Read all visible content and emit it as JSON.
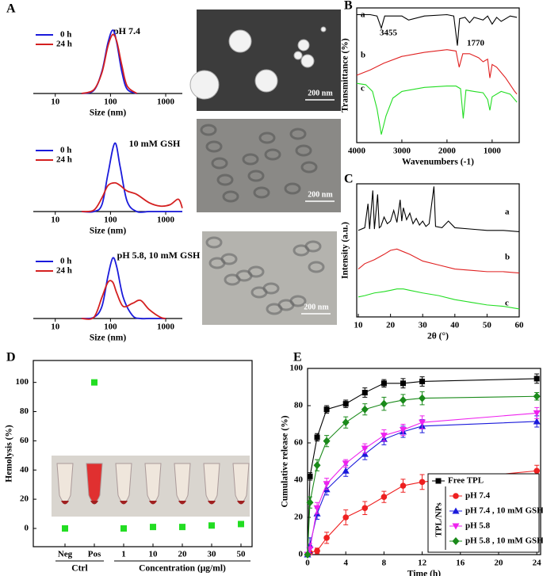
{
  "chart_data": [
    {
      "type": "line",
      "panel": "A",
      "title": "pH 7.4",
      "xlabel": "Size (nm)",
      "xscale": "log",
      "xlim": [
        4,
        2000
      ],
      "xticks": [
        10,
        100,
        1000
      ],
      "ylim": [
        0,
        1.1
      ],
      "x": [
        30,
        50,
        70,
        90,
        110,
        130,
        160,
        200,
        300
      ],
      "series": [
        {
          "name": "0 h",
          "color": "#1a1adb",
          "values": [
            0,
            0.05,
            0.35,
            0.8,
            1.0,
            0.8,
            0.35,
            0.07,
            0
          ]
        },
        {
          "name": "24 h",
          "color": "#d42020",
          "values": [
            0,
            0.06,
            0.33,
            0.75,
            0.93,
            0.82,
            0.45,
            0.12,
            0
          ]
        }
      ],
      "image_scale": "200 nm"
    },
    {
      "type": "line",
      "title": "10 mM GSH",
      "xlabel": "Size (nm)",
      "xscale": "log",
      "xlim": [
        4,
        2000
      ],
      "xticks": [
        10,
        100,
        1000
      ],
      "ylim": [
        0,
        1.1
      ],
      "x": [
        30,
        50,
        70,
        90,
        120,
        150,
        200,
        300,
        500,
        800,
        1200,
        1700,
        2000
      ],
      "series": [
        {
          "name": "0 h",
          "color": "#1a1adb",
          "values": [
            0,
            0,
            0.1,
            0.55,
            1.0,
            0.65,
            0.15,
            0,
            0,
            0,
            0,
            0,
            0
          ]
        },
        {
          "name": "24 h",
          "color": "#d42020",
          "values": [
            0,
            0.02,
            0.2,
            0.38,
            0.42,
            0.38,
            0.3,
            0.25,
            0.13,
            0.08,
            0.1,
            0.18,
            0.05
          ]
        }
      ],
      "image_scale": "200 nm"
    },
    {
      "type": "line",
      "title": "pH 5.8, 10 mM GSH",
      "xlabel": "Size (nm)",
      "xscale": "log",
      "xlim": [
        4,
        2000
      ],
      "xticks": [
        10,
        100,
        1000
      ],
      "ylim": [
        0,
        1.1
      ],
      "x": [
        30,
        50,
        70,
        90,
        110,
        130,
        170,
        250,
        350,
        500,
        800,
        1000
      ],
      "series": [
        {
          "name": "0 h",
          "color": "#1a1adb",
          "values": [
            0,
            0.02,
            0.2,
            0.7,
            1.0,
            0.85,
            0.35,
            0.05,
            0,
            0,
            0,
            0
          ]
        },
        {
          "name": "24 h",
          "color": "#d42020",
          "values": [
            0,
            0.02,
            0.35,
            0.6,
            0.6,
            0.42,
            0.2,
            0.25,
            0.3,
            0.15,
            0.02,
            0
          ]
        }
      ],
      "image_scale": "200 nm"
    },
    {
      "type": "line",
      "panel": "B",
      "xlabel": "Wavenumbers (-1)",
      "ylabel": "Transmittance (%)",
      "xlim": [
        4000,
        400
      ],
      "xticks": [
        4000,
        3000,
        2000,
        1000
      ],
      "ylim": [
        0,
        100
      ],
      "annotations": [
        "3455",
        "1770"
      ],
      "series": [
        {
          "name": "a",
          "color": "#000000",
          "x": [
            4000,
            3700,
            3550,
            3455,
            3380,
            3000,
            2900,
            2850,
            2500,
            2000,
            1850,
            1770,
            1720,
            1600,
            1500,
            1400,
            1200,
            1100,
            1000,
            900,
            800,
            600,
            450
          ],
          "values": [
            95,
            95,
            94,
            85,
            94,
            94,
            92,
            91,
            94,
            95,
            94,
            72,
            92,
            93,
            89,
            93,
            91,
            94,
            88,
            93,
            90,
            94,
            93
          ]
        },
        {
          "name": "b",
          "color": "#e02020",
          "x": [
            4000,
            3700,
            3400,
            3000,
            2500,
            2000,
            1800,
            1730,
            1650,
            1500,
            1300,
            1200,
            1100,
            1050,
            1000,
            900,
            700,
            500,
            450
          ],
          "values": [
            50,
            54,
            59,
            64,
            67,
            69,
            68,
            56,
            66,
            66,
            63,
            60,
            62,
            48,
            58,
            56,
            48,
            38,
            36
          ]
        },
        {
          "name": "c",
          "color": "#22dd22",
          "x": [
            4000,
            3800,
            3650,
            3550,
            3455,
            3350,
            3200,
            3000,
            2500,
            2000,
            1800,
            1700,
            1640,
            1580,
            1400,
            1200,
            1100,
            1050,
            1000,
            800,
            600,
            450
          ],
          "values": [
            44,
            43,
            38,
            25,
            6,
            20,
            33,
            38,
            41,
            42,
            42,
            40,
            18,
            39,
            38,
            37,
            32,
            24,
            34,
            38,
            36,
            30
          ]
        }
      ]
    },
    {
      "type": "line",
      "panel": "C",
      "xlabel": "2θ (°)",
      "ylabel": "Intensity (a.u.)",
      "xlim": [
        9.5,
        60
      ],
      "xticks": [
        10,
        20,
        30,
        40,
        50,
        60
      ],
      "ylim": [
        0,
        100
      ],
      "series": [
        {
          "name": "a",
          "color": "#000000",
          "x": [
            10,
            12,
            13,
            13.5,
            14.5,
            15,
            16,
            16.5,
            17,
            18,
            19,
            20,
            21,
            22,
            23,
            23.5,
            24,
            25,
            26,
            27,
            28,
            29,
            30,
            31,
            32,
            33.5,
            34,
            36,
            38,
            40,
            45,
            50,
            55,
            60
          ],
          "values": [
            65,
            67,
            85,
            66,
            95,
            66,
            92,
            67,
            68,
            75,
            70,
            72,
            80,
            71,
            88,
            72,
            82,
            73,
            78,
            70,
            74,
            69,
            72,
            68,
            70,
            98,
            68,
            67,
            72,
            67,
            66,
            65,
            65,
            64
          ]
        },
        {
          "name": "b",
          "color": "#e02020",
          "x": [
            10,
            12,
            15,
            18,
            20,
            22,
            24,
            26,
            30,
            35,
            40,
            45,
            50,
            55,
            60
          ],
          "values": [
            36,
            40,
            43,
            47,
            50,
            51,
            49,
            47,
            42,
            39,
            36,
            35,
            34,
            34,
            33
          ]
        },
        {
          "name": "c",
          "color": "#22dd22",
          "x": [
            10,
            12,
            15,
            18,
            20,
            22,
            24,
            26,
            30,
            35,
            40,
            45,
            50,
            55,
            60
          ],
          "values": [
            15,
            16,
            18,
            19,
            20,
            21,
            21,
            20,
            18,
            16,
            13,
            11,
            9,
            8,
            6
          ]
        }
      ]
    },
    {
      "type": "dot",
      "panel": "D",
      "ylabel": "Hemolysis (%)",
      "ylim": [
        -12.5,
        115
      ],
      "yticks": [
        0,
        20,
        40,
        60,
        80,
        100
      ],
      "color": "#22dd22",
      "categories": [
        "Neg",
        "Pos",
        "1",
        "10",
        "20",
        "30",
        "50"
      ],
      "values": [
        0,
        100,
        0,
        1,
        1,
        2,
        3
      ],
      "groups": [
        "Ctrl",
        "Concentration (μg/ml)"
      ]
    },
    {
      "type": "line",
      "panel": "E",
      "xlabel": "Time (h)",
      "ylabel": "Cumulative release (%)",
      "xlim": [
        0,
        24.4
      ],
      "xticks": [
        0,
        4,
        8,
        12,
        16,
        20,
        24
      ],
      "ylim": [
        0,
        100
      ],
      "yticks": [
        0,
        20,
        40,
        60,
        80,
        100
      ],
      "legend_group": "TPL/NPs",
      "x": [
        0,
        0.25,
        1,
        2,
        4,
        6,
        8,
        10,
        12,
        24
      ],
      "series": [
        {
          "name": "Free TPL",
          "color": "#000000",
          "values": [
            0,
            42,
            63,
            78,
            81,
            87,
            92,
            92,
            93,
            94.5
          ],
          "errors": [
            1,
            2,
            2,
            2,
            2,
            2.5,
            2,
            2.5,
            2.5,
            2.5
          ]
        },
        {
          "name": "pH 7.4",
          "color": "#ee2020",
          "values": [
            0,
            1,
            2,
            9,
            20,
            25,
            31,
            37,
            39,
            45
          ],
          "errors": [
            0.5,
            1,
            1.5,
            3,
            4,
            3.5,
            3,
            3.5,
            4,
            3
          ]
        },
        {
          "name": "pH 7.4 , 10 mM GSH",
          "color": "#1a1adb",
          "values": [
            0,
            5,
            22,
            35,
            45,
            54,
            62,
            66,
            69,
            71.5
          ],
          "errors": [
            0.5,
            4,
            3,
            3,
            3,
            3,
            3,
            3,
            3.5,
            3
          ]
        },
        {
          "name": "pH 5.8",
          "color": "#ee22ee",
          "values": [
            0,
            3,
            25,
            38,
            49,
            57,
            64,
            67,
            71,
            76
          ],
          "errors": [
            0.5,
            3,
            3,
            3,
            2,
            2.5,
            3,
            3,
            3.5,
            3
          ]
        },
        {
          "name": "pH 5.8 , 10 mM GSH",
          "color": "#1a8a1a",
          "values": [
            0,
            28,
            48,
            61,
            71,
            78,
            81,
            83,
            84,
            85
          ],
          "errors": [
            0.5,
            3,
            3,
            3,
            3,
            3,
            3.5,
            3,
            3.5,
            2
          ]
        }
      ]
    }
  ]
}
